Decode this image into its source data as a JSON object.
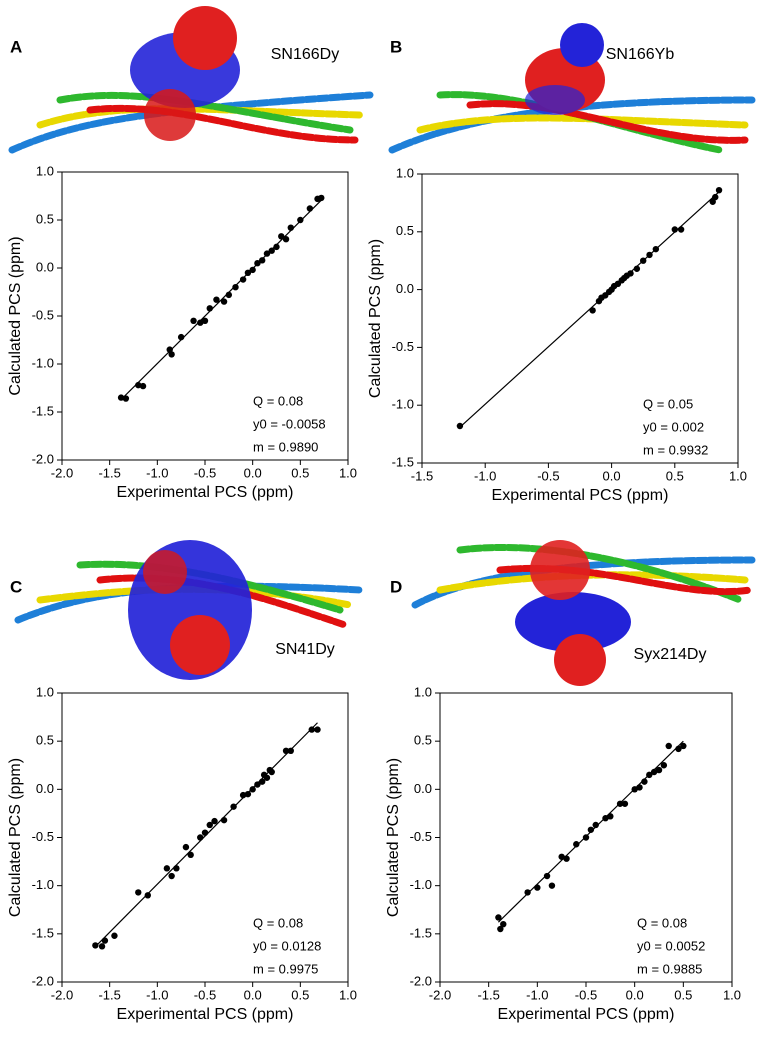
{
  "chart_data": [
    {
      "type": "scatter",
      "panel": "A",
      "name": "SN166Dy",
      "xlabel": "Experimental PCS (ppm)",
      "ylabel": "Calculated PCS (ppm)",
      "xlim": [
        -2,
        1
      ],
      "ylim": [
        -2,
        1
      ],
      "xticks": [
        {
          "value": -2,
          "label": "-2.0"
        },
        -1.5,
        {
          "value": -1,
          "label": "-1.0"
        },
        -0.5,
        {
          "value": 0,
          "label": "0.0"
        },
        0.5,
        {
          "value": 1,
          "label": "1.0"
        }
      ],
      "yticks": [
        {
          "value": -2,
          "label": "-2.0"
        },
        -1.5,
        {
          "value": -1,
          "label": "-1.0"
        },
        -0.5,
        {
          "value": 0,
          "label": "0.0"
        },
        0.5,
        {
          "value": 1,
          "label": "1.0"
        }
      ],
      "x": [
        -1.38,
        -1.33,
        -1.2,
        -1.15,
        -0.87,
        -0.85,
        -0.75,
        -0.62,
        -0.55,
        -0.5,
        -0.45,
        -0.38,
        -0.3,
        -0.25,
        -0.18,
        -0.1,
        -0.05,
        0,
        0.05,
        0.1,
        0.15,
        0.2,
        0.25,
        0.3,
        0.35,
        0.4,
        0.5,
        0.6,
        0.68,
        0.72
      ],
      "y": [
        -1.35,
        -1.36,
        -1.22,
        -1.23,
        -0.85,
        -0.9,
        -0.72,
        -0.55,
        -0.57,
        -0.55,
        -0.42,
        -0.33,
        -0.35,
        -0.28,
        -0.2,
        -0.12,
        -0.05,
        -0.02,
        0.05,
        0.08,
        0.15,
        0.18,
        0.22,
        0.33,
        0.3,
        0.42,
        0.5,
        0.62,
        0.72,
        0.73
      ],
      "fit": {
        "q": 0.08,
        "y0": -0.0058,
        "m": 0.989
      },
      "fit_labels": [
        "Q = 0.08",
        "y0 = -0.0058",
        "m = 0.9890"
      ]
    },
    {
      "type": "scatter",
      "panel": "B",
      "name": "SN166Yb",
      "xlabel": "Experimental PCS (ppm)",
      "ylabel": "Calculated PCS (ppm)",
      "xlim": [
        -1.5,
        1
      ],
      "ylim": [
        -1.5,
        1
      ],
      "xticks": [
        -1.5,
        {
          "value": -1,
          "label": "-1.0"
        },
        -0.5,
        {
          "value": 0,
          "label": "0.0"
        },
        0.5,
        {
          "value": 1,
          "label": "1.0"
        }
      ],
      "yticks": [
        -1.5,
        {
          "value": -1,
          "label": "-1.0"
        },
        -0.5,
        {
          "value": 0,
          "label": "0.0"
        },
        0.5,
        {
          "value": 1,
          "label": "1.0"
        }
      ],
      "x": [
        -1.2,
        -0.15,
        -0.1,
        -0.08,
        -0.05,
        -0.02,
        0,
        0.02,
        0.05,
        0.08,
        0.1,
        0.12,
        0.15,
        0.2,
        0.25,
        0.3,
        0.35,
        0.5,
        0.55,
        0.8,
        0.82,
        0.85
      ],
      "y": [
        -1.18,
        -0.18,
        -0.1,
        -0.07,
        -0.05,
        -0.02,
        0,
        0.03,
        0.05,
        0.08,
        0.1,
        0.12,
        0.14,
        0.18,
        0.25,
        0.3,
        0.35,
        0.52,
        0.52,
        0.76,
        0.8,
        0.86
      ],
      "fit": {
        "q": 0.05,
        "y0": 0.002,
        "m": 0.9932
      },
      "fit_labels": [
        "Q = 0.05",
        "y0 = 0.002",
        "m = 0.9932"
      ]
    },
    {
      "type": "scatter",
      "panel": "C",
      "name": "SN41Dy",
      "xlabel": "Experimental PCS (ppm)",
      "ylabel": "Calculated PCS (ppm)",
      "xlim": [
        -2,
        1
      ],
      "ylim": [
        -2,
        1
      ],
      "xticks": [
        {
          "value": -2,
          "label": "-2.0"
        },
        -1.5,
        {
          "value": -1,
          "label": "-1.0"
        },
        -0.5,
        {
          "value": 0,
          "label": "0.0"
        },
        0.5,
        {
          "value": 1,
          "label": "1.0"
        }
      ],
      "yticks": [
        {
          "value": -2,
          "label": "-2.0"
        },
        -1.5,
        {
          "value": -1,
          "label": "-1.0"
        },
        -0.5,
        {
          "value": 0,
          "label": "0.0"
        },
        0.5,
        {
          "value": 1,
          "label": "1.0"
        }
      ],
      "x": [
        -1.65,
        -1.58,
        -1.55,
        -1.45,
        -1.2,
        -1.1,
        -0.9,
        -0.85,
        -0.8,
        -0.7,
        -0.65,
        -0.55,
        -0.5,
        -0.45,
        -0.4,
        -0.3,
        -0.2,
        -0.1,
        -0.05,
        0,
        0.05,
        0.1,
        0.12,
        0.15,
        0.18,
        0.2,
        0.35,
        0.4,
        0.62,
        0.68
      ],
      "y": [
        -1.62,
        -1.63,
        -1.57,
        -1.52,
        -1.07,
        -1.1,
        -0.82,
        -0.9,
        -0.82,
        -0.6,
        -0.68,
        -0.5,
        -0.45,
        -0.37,
        -0.33,
        -0.32,
        -0.18,
        -0.06,
        -0.05,
        0,
        0.05,
        0.08,
        0.15,
        0.12,
        0.2,
        0.18,
        0.4,
        0.4,
        0.62,
        0.62
      ],
      "fit": {
        "q": 0.08,
        "y0": 0.0128,
        "m": 0.9975
      },
      "fit_labels": [
        "Q = 0.08",
        "y0 = 0.0128",
        "m = 0.9975"
      ]
    },
    {
      "type": "scatter",
      "panel": "D",
      "name": "Syx214Dy",
      "xlabel": "Experimental PCS (ppm)",
      "ylabel": "Calculated PCS (ppm)",
      "xlim": [
        -2,
        1
      ],
      "ylim": [
        -2,
        1
      ],
      "xticks": [
        {
          "value": -2,
          "label": "-2.0"
        },
        -1.5,
        {
          "value": -1,
          "label": "-1.0"
        },
        -0.5,
        {
          "value": 0,
          "label": "0.0"
        },
        0.5,
        {
          "value": 1,
          "label": "1.0"
        }
      ],
      "yticks": [
        {
          "value": -2,
          "label": "-2.0"
        },
        -1.5,
        {
          "value": -1,
          "label": "-1.0"
        },
        -0.5,
        {
          "value": 0,
          "label": "0.0"
        },
        0.5,
        {
          "value": 1,
          "label": "1.0"
        }
      ],
      "x": [
        -1.4,
        -1.38,
        -1.35,
        -1.1,
        -1,
        -0.9,
        -0.85,
        -0.75,
        -0.7,
        -0.6,
        -0.5,
        -0.45,
        -0.4,
        -0.3,
        -0.25,
        -0.15,
        -0.1,
        0,
        0.05,
        0.1,
        0.15,
        0.2,
        0.25,
        0.3,
        0.35,
        0.45,
        0.5
      ],
      "y": [
        -1.33,
        -1.45,
        -1.4,
        -1.07,
        -1.02,
        -0.9,
        -1,
        -0.7,
        -0.72,
        -0.57,
        -0.5,
        -0.42,
        -0.37,
        -0.3,
        -0.28,
        -0.15,
        -0.15,
        0,
        0.02,
        0.08,
        0.15,
        0.18,
        0.2,
        0.25,
        0.45,
        0.42,
        0.45
      ],
      "fit": {
        "q": 0.08,
        "y0": 0.0052,
        "m": 0.9885
      },
      "fit_labels": [
        "Q = 0.08",
        "y0 = 0.0052",
        "m = 0.9885"
      ]
    }
  ]
}
